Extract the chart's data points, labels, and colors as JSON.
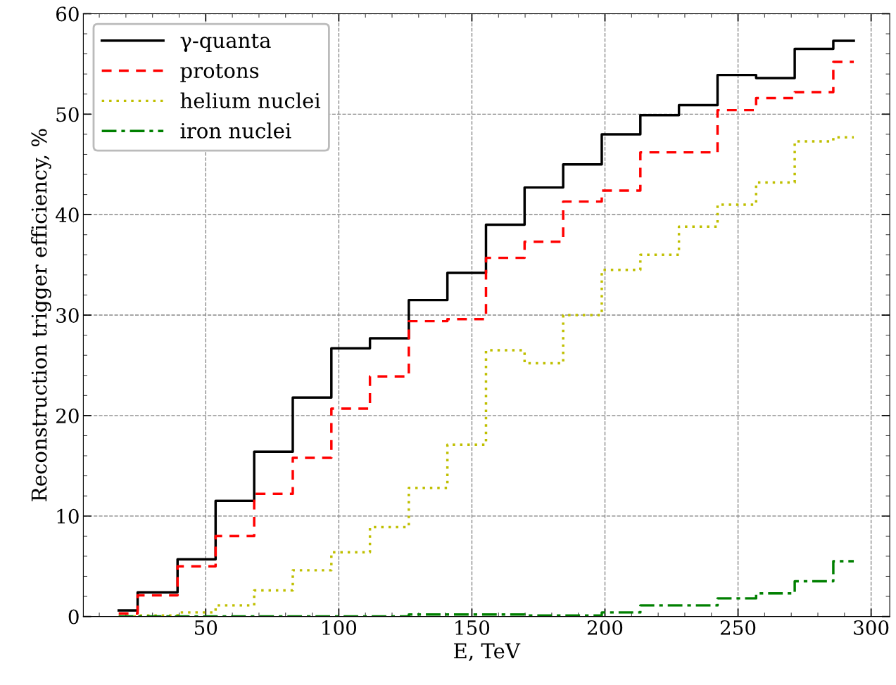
{
  "chart_data": {
    "type": "step",
    "xlabel": "E, TeV",
    "ylabel": "Reconstruction trigger efficiency, %",
    "x": [
      17.3,
      24.4,
      39.4,
      53.7,
      68.2,
      82.7,
      97.2,
      111.7,
      126.3,
      140.8,
      155.3,
      169.8,
      184.3,
      198.8,
      213.3,
      227.8,
      242.3,
      256.8,
      271.3,
      285.8,
      293.5
    ],
    "series": [
      {
        "name": "γ-quanta",
        "color": "#000000",
        "line_style": "solid",
        "values": [
          0.6,
          2.4,
          5.7,
          11.5,
          16.4,
          21.8,
          26.7,
          27.7,
          31.5,
          34.2,
          39.0,
          42.7,
          45.0,
          48.0,
          49.9,
          50.9,
          53.9,
          53.6,
          56.5,
          57.3,
          57.3
        ]
      },
      {
        "name": "protons",
        "color": "#ff0000",
        "line_style": "dashed",
        "values": [
          0.3,
          2.1,
          5.0,
          8.0,
          12.2,
          15.8,
          20.7,
          23.9,
          29.4,
          29.6,
          35.7,
          37.3,
          41.3,
          42.4,
          46.2,
          46.2,
          50.4,
          51.6,
          52.2,
          55.2,
          55.2
        ]
      },
      {
        "name": "helium nuclei",
        "color": "#bfbf00",
        "line_style": "dotted",
        "values": [
          0.0,
          0.1,
          0.4,
          1.1,
          2.6,
          4.6,
          6.4,
          8.9,
          12.8,
          17.1,
          26.5,
          25.2,
          30.0,
          34.5,
          36.0,
          38.8,
          41.0,
          43.2,
          47.3,
          47.7,
          47.7
        ]
      },
      {
        "name": "iron nuclei",
        "color": "#008000",
        "line_style": "dashdot",
        "values": [
          0.0,
          0.0,
          0.0,
          0.0,
          0.0,
          0.0,
          0.0,
          0.0,
          0.2,
          0.2,
          0.2,
          0.1,
          0.1,
          0.4,
          1.1,
          1.1,
          1.8,
          2.3,
          3.5,
          5.5,
          5.5
        ]
      }
    ],
    "xlim": [
      4,
      307
    ],
    "ylim": [
      0,
      60
    ],
    "xticks": [
      50,
      100,
      150,
      200,
      250,
      300
    ],
    "yticks": [
      0,
      10,
      20,
      30,
      40,
      50,
      60
    ],
    "grid": true,
    "legend": "top left"
  }
}
